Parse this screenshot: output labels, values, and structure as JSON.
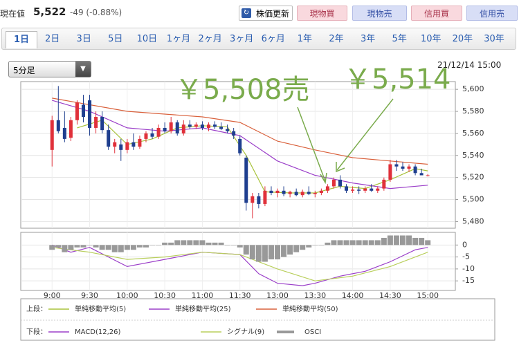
{
  "header": {
    "label": "現在値",
    "price": "5,522",
    "change": "-49 (-0.88%)"
  },
  "buttons": [
    "株価更新",
    "現物買",
    "現物売",
    "信用買",
    "信用売"
  ],
  "tabs": [
    "1日",
    "2日",
    "3日",
    "5日",
    "10日",
    "1ヶ月",
    "2ヶ月",
    "3ヶ月",
    "6ヶ月",
    "1年",
    "2年",
    "3年",
    "5年",
    "10年",
    "20年",
    "30年"
  ],
  "selected_tab": 0,
  "interval": "5分足",
  "timestamp": "21/12/14 15:00",
  "chart_data": [
    {
      "type": "candlestick",
      "legend_title": "上段：",
      "up_color": "#e0303a",
      "down_color": "#1f3f8f",
      "open": [
        5545,
        5572,
        5565,
        5556,
        5572,
        5586,
        5590,
        5565,
        5575,
        5563,
        5548,
        5550,
        5545,
        5552,
        5548,
        5555,
        5560,
        5557,
        5565,
        5562,
        5570,
        5560,
        5568,
        5566,
        5568,
        5565,
        5568,
        5566,
        5564,
        5562,
        5555,
        5538,
        5497,
        5503,
        5496,
        5508,
        5506,
        5508,
        5505,
        5507,
        5504,
        5507,
        5505,
        5506,
        5508,
        5512,
        5518,
        5512,
        5508,
        5509,
        5508,
        5510,
        5508,
        5510,
        5518,
        5532,
        5530,
        5528,
        5530,
        5524,
        5522
      ],
      "high": [
        5576,
        5603,
        5580,
        5575,
        5590,
        5595,
        5595,
        5580,
        5580,
        5568,
        5555,
        5555,
        5555,
        5560,
        5558,
        5562,
        5565,
        5568,
        5570,
        5575,
        5572,
        5572,
        5572,
        5570,
        5571,
        5570,
        5571,
        5570,
        5568,
        5565,
        5558,
        5540,
        5506,
        5506,
        5512,
        5512,
        5510,
        5512,
        5508,
        5510,
        5509,
        5512,
        5508,
        5510,
        5514,
        5520,
        5522,
        5514,
        5512,
        5512,
        5512,
        5514,
        5512,
        5520,
        5536,
        5536,
        5534,
        5532,
        5532,
        5528,
        5523
      ],
      "low": [
        5530,
        5560,
        5552,
        5553,
        5568,
        5570,
        5558,
        5560,
        5560,
        5545,
        5542,
        5535,
        5542,
        5545,
        5546,
        5552,
        5555,
        5555,
        5560,
        5560,
        5558,
        5558,
        5564,
        5564,
        5563,
        5562,
        5564,
        5563,
        5560,
        5555,
        5540,
        5490,
        5483,
        5492,
        5494,
        5504,
        5502,
        5503,
        5502,
        5503,
        5502,
        5504,
        5502,
        5504,
        5506,
        5510,
        5510,
        5506,
        5506,
        5505,
        5506,
        5507,
        5506,
        5508,
        5516,
        5526,
        5526,
        5525,
        5522,
        5522,
        5521
      ],
      "close": [
        5572,
        5562,
        5555,
        5572,
        5588,
        5575,
        5565,
        5575,
        5563,
        5548,
        5552,
        5545,
        5552,
        5548,
        5555,
        5560,
        5557,
        5565,
        5562,
        5570,
        5560,
        5568,
        5566,
        5568,
        5565,
        5568,
        5566,
        5564,
        5562,
        5558,
        5542,
        5497,
        5503,
        5496,
        5508,
        5506,
        5508,
        5505,
        5507,
        5504,
        5507,
        5505,
        5506,
        5508,
        5512,
        5518,
        5512,
        5508,
        5509,
        5508,
        5510,
        5508,
        5510,
        5518,
        5532,
        5530,
        5528,
        5530,
        5524,
        5522,
        5522
      ],
      "series": [
        {
          "name": "単純移動平均(5)",
          "color": "#a8c23a",
          "x": [
            4,
            8,
            12,
            16,
            20,
            24,
            28,
            31,
            34,
            38,
            42,
            46,
            50,
            54,
            58,
            60
          ],
          "values": [
            5565,
            5572,
            5550,
            5555,
            5565,
            5567,
            5566,
            5540,
            5507,
            5506,
            5506,
            5512,
            5510,
            5518,
            5528,
            5526
          ]
        },
        {
          "name": "単純移動平均(25)",
          "color": "#9b3fc9",
          "x": [
            0,
            6,
            12,
            18,
            24,
            30,
            36,
            42,
            48,
            54,
            60
          ],
          "values": [
            5590,
            5580,
            5565,
            5562,
            5565,
            5558,
            5535,
            5522,
            5515,
            5510,
            5513
          ]
        },
        {
          "name": "単純移動平均(50)",
          "color": "#d9603b",
          "x": [
            0,
            12,
            24,
            30,
            36,
            42,
            48,
            54,
            60
          ],
          "values": [
            5592,
            5580,
            5575,
            5570,
            5553,
            5545,
            5538,
            5535,
            5532
          ]
        }
      ],
      "xlim": [
        -5,
        64.4
      ],
      "ylim": [
        5474,
        5607
      ],
      "yticks": [
        {
          "value": 5480,
          "label": "5,480"
        },
        {
          "value": 5500,
          "label": "5,500"
        },
        {
          "value": 5520,
          "label": "5,520"
        },
        {
          "value": 5540,
          "label": "5,540"
        },
        {
          "value": 5560,
          "label": "5,560"
        },
        {
          "value": 5580,
          "label": "5,580"
        },
        {
          "value": 5600,
          "label": "5,600"
        }
      ],
      "annotations": [
        "￥5,508売",
        "￥5,514"
      ]
    },
    {
      "type": "macd",
      "legend_title": "下段：",
      "series": [
        {
          "name": "MACD(12,26)",
          "color": "#9b3fc9",
          "x": [
            0,
            3,
            6,
            9,
            12,
            18,
            24,
            30,
            33,
            36,
            40,
            42,
            46,
            50,
            54,
            58,
            60
          ],
          "values": [
            0,
            -3,
            -1,
            -5,
            -9,
            -6,
            -3,
            -4,
            -12,
            -16,
            -17,
            -16,
            -13,
            -11,
            -7,
            -2,
            -1
          ]
        },
        {
          "name": "シグナル(9)",
          "color": "#b9cf5c",
          "x": [
            0,
            6,
            12,
            18,
            24,
            30,
            36,
            42,
            48,
            54,
            60
          ],
          "values": [
            -1,
            -3,
            -6,
            -5,
            -3,
            -4,
            -10,
            -15,
            -13,
            -9,
            -3
          ]
        },
        {
          "name": "OSCI",
          "color": "#999999",
          "values": [
            -2,
            -1,
            -3,
            -2,
            -1,
            -1,
            0,
            -1,
            -2,
            -2,
            -3,
            -3,
            -2,
            -2,
            -1,
            -1,
            0,
            0,
            1,
            1,
            2,
            2,
            2,
            2,
            2,
            1,
            1,
            1,
            0,
            0,
            -1,
            -4,
            -6,
            -7,
            -7,
            -6,
            -6,
            -5,
            -4,
            -3,
            -2,
            -1,
            0,
            0,
            1,
            2,
            2,
            2,
            2,
            2,
            2,
            2,
            2,
            3,
            4,
            4,
            4,
            4,
            3,
            3,
            2
          ]
        }
      ],
      "xlim": [
        -5,
        64.4
      ],
      "ylim": [
        -19,
        5.3
      ],
      "yticks": [
        0,
        -5,
        -10,
        -15
      ],
      "xticks": [
        {
          "value": 0,
          "label": "9:00"
        },
        {
          "value": 6,
          "label": "9:30"
        },
        {
          "value": 12,
          "label": "10:00"
        },
        {
          "value": 18,
          "label": "10:30"
        },
        {
          "value": 24,
          "label": "11:00"
        },
        {
          "value": 30,
          "label": "11:30"
        },
        {
          "value": 36,
          "label": "13:00"
        },
        {
          "value": 42,
          "label": "13:30"
        },
        {
          "value": 48,
          "label": "14:00"
        },
        {
          "value": 54,
          "label": "14:30"
        },
        {
          "value": 60,
          "label": "15:00"
        }
      ]
    }
  ]
}
